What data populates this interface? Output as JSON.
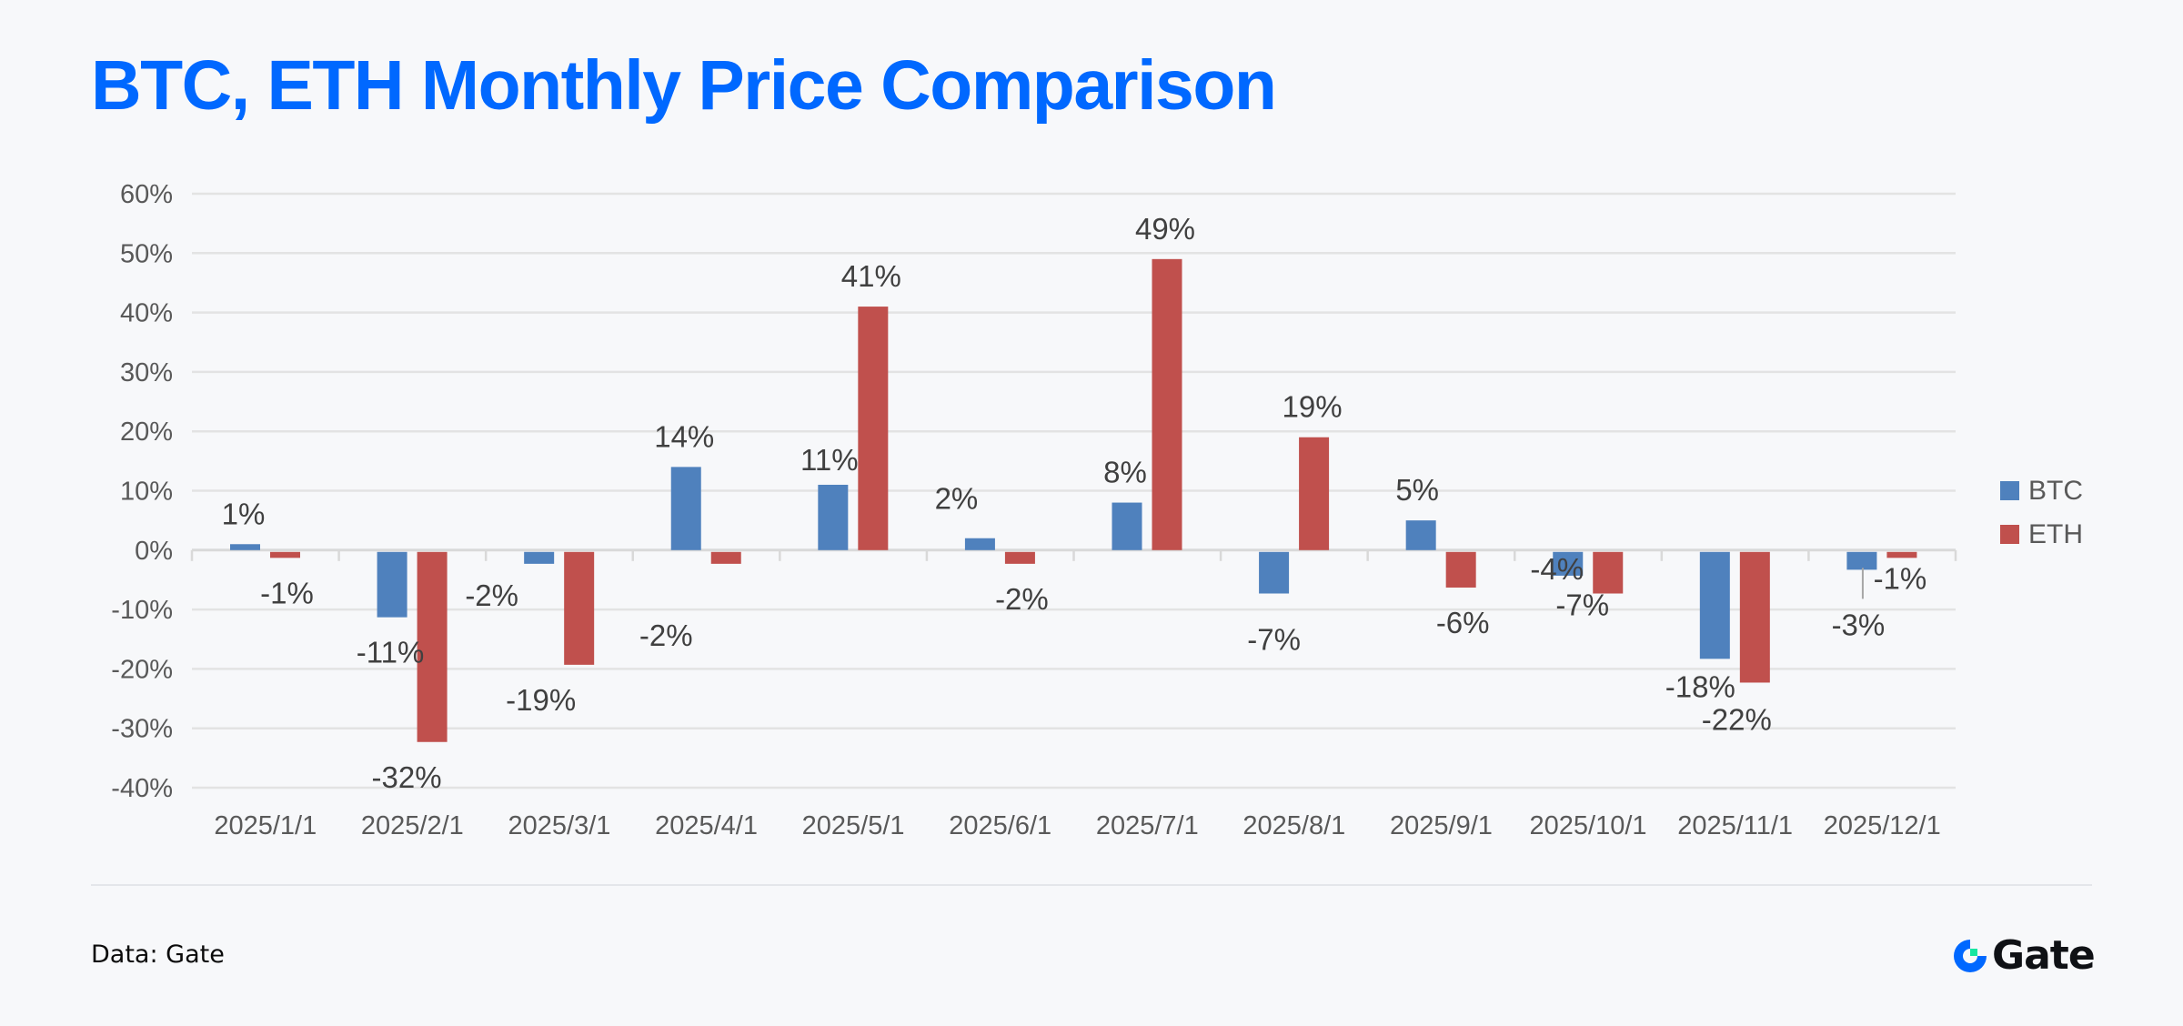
{
  "header": {
    "title": "BTC, ETH Monthly Price Comparison"
  },
  "footer": {
    "source": "Data: Gate",
    "brand": "Gate"
  },
  "colors": {
    "title": "#0068FF",
    "btc": "#4F81BD",
    "eth": "#C0504D",
    "grid": "#E3E3E3",
    "logo_ring": "#0068FF",
    "logo_square": "#17E6A1"
  },
  "chart_data": {
    "type": "bar",
    "title": "BTC, ETH Monthly Price Comparison",
    "xlabel": "",
    "ylabel": "",
    "categories": [
      "2025/1/1",
      "2025/2/1",
      "2025/3/1",
      "2025/4/1",
      "2025/5/1",
      "2025/6/1",
      "2025/7/1",
      "2025/8/1",
      "2025/9/1",
      "2025/10/1",
      "2025/11/1",
      "2025/12/1"
    ],
    "series": [
      {
        "name": "BTC",
        "color": "#4F81BD",
        "values": [
          1,
          -11,
          -2,
          14,
          11,
          2,
          8,
          -7,
          5,
          -4,
          -18,
          -3
        ],
        "labels": [
          "1%",
          "-11%",
          "-2%",
          "14%",
          "11%",
          "2%",
          "8%",
          "-7%",
          "5%",
          "-4%",
          "-18%",
          "-3%"
        ]
      },
      {
        "name": "ETH",
        "color": "#C0504D",
        "values": [
          -1,
          -32,
          -19,
          -2,
          41,
          -2,
          49,
          19,
          -6,
          -7,
          -22,
          -1
        ],
        "labels": [
          "-1%",
          "-32%",
          "-19%",
          "-2%",
          "41%",
          "-2%",
          "49%",
          "19%",
          "-6%",
          "-7%",
          "-22%",
          "-1%"
        ]
      }
    ],
    "ylim": [
      -40,
      60
    ],
    "yticks": [
      60,
      50,
      40,
      30,
      20,
      10,
      0,
      -10,
      -20,
      -30,
      -40
    ],
    "ytick_labels": [
      "60%",
      "50%",
      "40%",
      "30%",
      "20%",
      "10%",
      "0%",
      "-10%",
      "-20%",
      "-30%",
      "-40%"
    ],
    "grid": true,
    "legend": {
      "position": "right",
      "entries": [
        "BTC",
        "ETH"
      ]
    }
  }
}
